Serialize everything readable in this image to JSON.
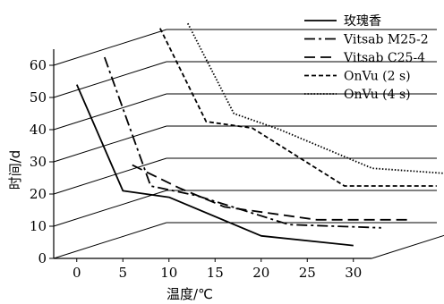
{
  "chart_data": {
    "type": "line",
    "title": "",
    "xlabel": "温度/℃",
    "ylabel": "时间/d",
    "x_ticks": [
      0,
      5,
      10,
      15,
      20,
      25,
      30
    ],
    "y_ticks": [
      0,
      10,
      20,
      30,
      40,
      50,
      60
    ],
    "xlim": [
      -2.5,
      32
    ],
    "ylim": [
      0,
      65
    ],
    "grid": true,
    "legend_position": "top-right",
    "layout_style": "3d-perspective-offset",
    "series": [
      {
        "name": "玫瑰香",
        "style": "solid",
        "x": [
          0,
          5,
          10,
          20,
          30
        ],
        "y": [
          54,
          21,
          19,
          7,
          4
        ]
      },
      {
        "name": "Vitsab M25-2",
        "style": "dash-dot",
        "x": [
          0,
          5,
          10,
          20,
          30
        ],
        "y": [
          60,
          20,
          17,
          8,
          7
        ]
      },
      {
        "name": "Vitsab C25-4",
        "style": "dashed",
        "x": [
          0,
          5,
          10,
          20,
          30
        ],
        "y": [
          24,
          17,
          11,
          7,
          7
        ]
      },
      {
        "name": "OnVu (2 s)",
        "style": "dashed-short",
        "x": [
          0,
          5,
          10,
          20,
          30
        ],
        "y": [
          64,
          35,
          33,
          15,
          15
        ]
      },
      {
        "name": "OnVu (4 s)",
        "style": "dotted",
        "x": [
          0,
          5,
          10,
          20,
          30
        ],
        "y": [
          63,
          35,
          30,
          18,
          16
        ]
      }
    ]
  }
}
